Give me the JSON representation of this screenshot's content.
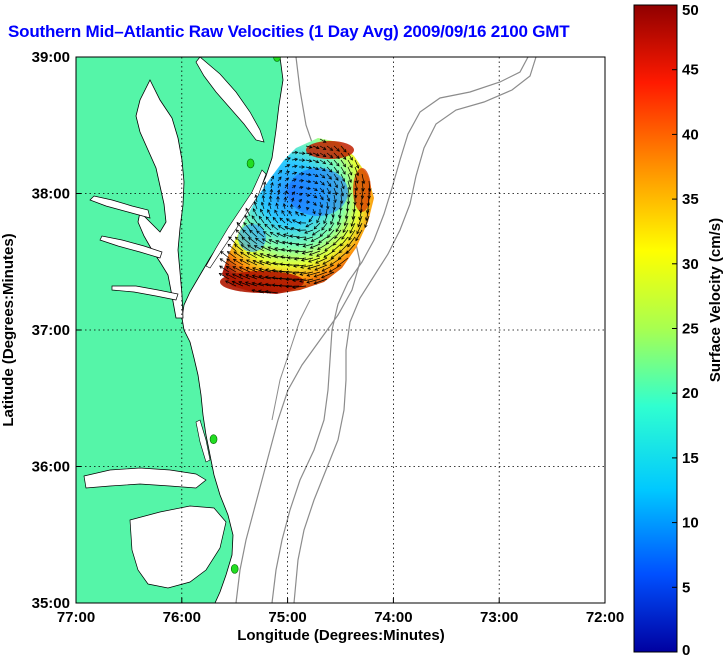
{
  "title": "Southern Mid–Atlantic Raw Velocities (1 Day Avg) 2009/09/16 2100 GMT",
  "x_axis": {
    "label": "Longitude (Degrees:Minutes)",
    "ticks": [
      {
        "value": -77,
        "label": "77:00"
      },
      {
        "value": -76,
        "label": "76:00"
      },
      {
        "value": -75,
        "label": "75:00"
      },
      {
        "value": -74,
        "label": "74:00"
      },
      {
        "value": -73,
        "label": "73:00"
      },
      {
        "value": -72,
        "label": "72:00"
      }
    ],
    "range": [
      -77,
      -72
    ]
  },
  "y_axis": {
    "label": "Latitude (Degrees:Minutes)",
    "ticks": [
      {
        "value": 39,
        "label": "39:00"
      },
      {
        "value": 38,
        "label": "38:00"
      },
      {
        "value": 37,
        "label": "37:00"
      },
      {
        "value": 36,
        "label": "36:00"
      },
      {
        "value": 35,
        "label": "35:00"
      }
    ],
    "range": [
      35,
      39
    ]
  },
  "colorbar": {
    "label": "Surface Velocity (cm/s)",
    "range": [
      0,
      50
    ],
    "ticks": [
      {
        "value": 50,
        "label": "50"
      },
      {
        "value": 45,
        "label": "45"
      },
      {
        "value": 40,
        "label": "40"
      },
      {
        "value": 35,
        "label": "35"
      },
      {
        "value": 30,
        "label": "30"
      },
      {
        "value": 25,
        "label": "25"
      },
      {
        "value": 20,
        "label": "20"
      },
      {
        "value": 15,
        "label": "15"
      },
      {
        "value": 10,
        "label": "10"
      },
      {
        "value": 5,
        "label": "5"
      },
      {
        "value": 0,
        "label": "0"
      }
    ],
    "colormap": "jet"
  },
  "colors": {
    "land": "#55f5a8",
    "water": "#ffffff",
    "title": "#0000ff",
    "coast": "#000000",
    "bathymetry": "#8c8c8c",
    "grid": "#000000",
    "station_marker": "#22dd22"
  },
  "stations_markers": [
    {
      "lon": -75.1,
      "lat": 39.0
    },
    {
      "lon": -75.35,
      "lat": 38.22
    },
    {
      "lon": -75.7,
      "lat": 36.2
    },
    {
      "lon": -75.5,
      "lat": 35.25
    }
  ],
  "chart_data": {
    "type": "vector-field-map",
    "title": "Southern Mid–Atlantic Raw Velocities (1 Day Avg) 2009/09/16 2100 GMT",
    "xlabel": "Longitude (Degrees:Minutes)",
    "ylabel": "Latitude (Degrees:Minutes)",
    "xlim": [
      -77,
      -72
    ],
    "ylim": [
      35,
      39
    ],
    "grid": true,
    "colorbar_label": "Surface Velocity (cm/s)",
    "colorbar_range": [
      0,
      50
    ],
    "velocity_regions": [
      {
        "region": "southwest edge near 37:10N 75:30W",
        "speed_cm_s": 48
      },
      {
        "region": "northern edge near 38:15N 74:50W",
        "speed_cm_s": 45
      },
      {
        "region": "eastern edge near 38:00N 74:15W",
        "speed_cm_s": 40
      },
      {
        "region": "center near 38:00N 74:50W",
        "speed_cm_s": 8
      },
      {
        "region": "western inshore near 37:40N 75:25W",
        "speed_cm_s": 10
      },
      {
        "region": "south-central near 37:30N 74:45W",
        "speed_cm_s": 22
      }
    ]
  }
}
